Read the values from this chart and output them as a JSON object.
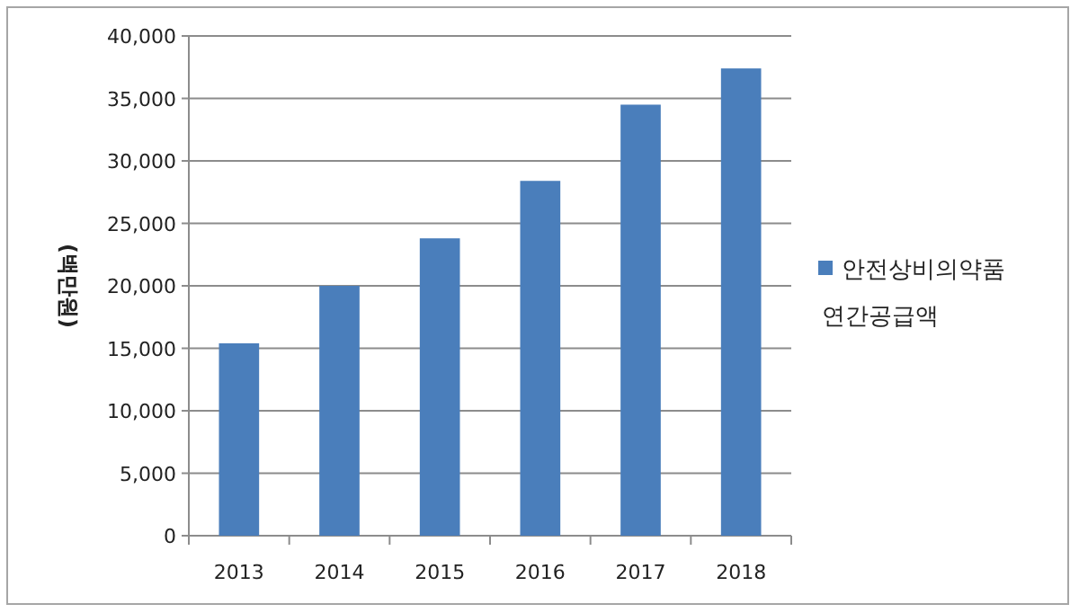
{
  "chart_data": {
    "type": "bar",
    "ylabel": "(백만원)",
    "categories": [
      "2013",
      "2014",
      "2015",
      "2016",
      "2017",
      "2018"
    ],
    "series": [
      {
        "name": "안전상비의약품 연간공급액",
        "color": "#4a7ebb",
        "values": [
          15400,
          20000,
          23800,
          28400,
          34500,
          37400
        ]
      }
    ],
    "ylim": [
      0,
      40000
    ],
    "yticks": [
      {
        "value": 0,
        "label": "0"
      },
      {
        "value": 5000,
        "label": "5,000"
      },
      {
        "value": 10000,
        "label": "10,000"
      },
      {
        "value": 15000,
        "label": "15,000"
      },
      {
        "value": 20000,
        "label": "20,000"
      },
      {
        "value": 25000,
        "label": "25,000"
      },
      {
        "value": 30000,
        "label": "30,000"
      },
      {
        "value": 35000,
        "label": "35,000"
      },
      {
        "value": 40000,
        "label": "40,000"
      }
    ],
    "grid": "y",
    "legend": "right"
  }
}
